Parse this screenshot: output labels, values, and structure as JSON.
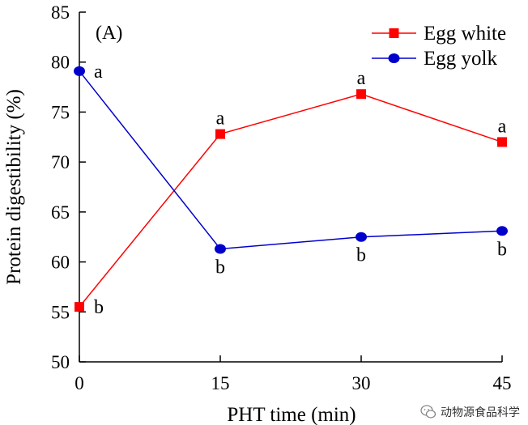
{
  "chart_data": {
    "type": "line",
    "panel_label": "(A)",
    "xlabel": "PHT time (min)",
    "ylabel": "Protein digestibility (%)",
    "x": [
      0,
      15,
      30,
      45
    ],
    "xticks": [
      "0",
      "15",
      "30",
      "45"
    ],
    "ylim": [
      50,
      85
    ],
    "yticks": [
      "50",
      "55",
      "60",
      "65",
      "70",
      "75",
      "80",
      "85"
    ],
    "grid": false,
    "legend_position": "top-right",
    "series": [
      {
        "name": "Egg white",
        "color": "#ff0000",
        "marker": "square",
        "values": [
          55.5,
          72.8,
          76.8,
          72.0
        ],
        "labels": [
          "b",
          "a",
          "a",
          "a"
        ]
      },
      {
        "name": "Egg yolk",
        "color": "#0000cc",
        "marker": "circle",
        "values": [
          79.1,
          61.3,
          62.5,
          63.1
        ],
        "labels": [
          "a",
          "b",
          "b",
          "b"
        ]
      }
    ]
  },
  "watermark": {
    "text": "动物源食品科学",
    "icon": "wechat-icon"
  }
}
